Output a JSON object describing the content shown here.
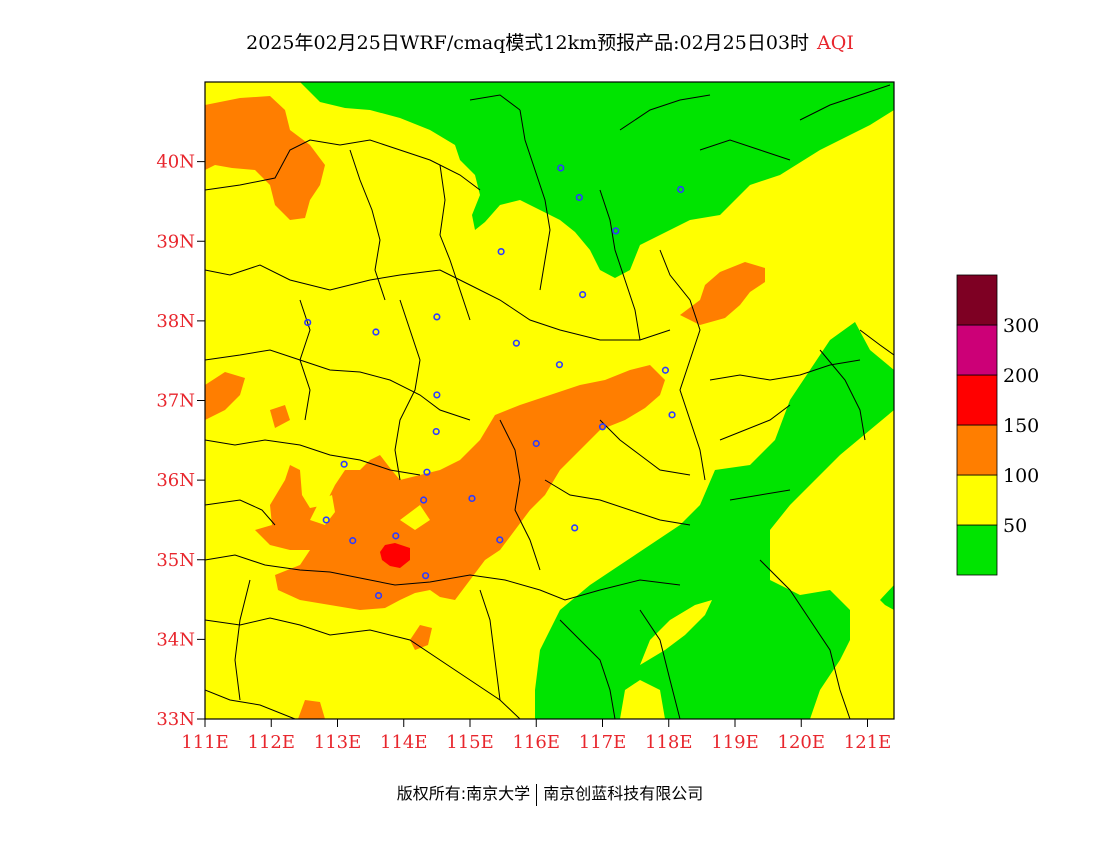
{
  "title": {
    "product": "2025年02月25日WRF/cmaq模式12km预报产品:02月25日03时",
    "variable": "AQI"
  },
  "copyright": {
    "owner": "版权所有:南京大学",
    "company": "南京创蓝科技有限公司"
  },
  "map": {
    "lon_range": [
      111,
      121.4
    ],
    "lat_range": [
      33,
      41
    ],
    "lon_ticks": [
      "111E",
      "112E",
      "113E",
      "114E",
      "115E",
      "116E",
      "117E",
      "118E",
      "119E",
      "120E",
      "121E"
    ],
    "lat_ticks": [
      "33N",
      "34N",
      "35N",
      "36N",
      "37N",
      "38N",
      "39N",
      "40N"
    ],
    "lat_tick_values": [
      33,
      34,
      35,
      36,
      37,
      38,
      39,
      40
    ],
    "lon_tick_values": [
      111,
      112,
      113,
      114,
      115,
      116,
      117,
      118,
      119,
      120,
      121
    ],
    "background_color": "#ffff00",
    "stations": [
      [
        116.37,
        39.92
      ],
      [
        116.65,
        39.55
      ],
      [
        117.2,
        39.13
      ],
      [
        118.18,
        39.65
      ],
      [
        115.47,
        38.87
      ],
      [
        116.7,
        38.33
      ],
      [
        112.55,
        37.98
      ],
      [
        113.58,
        37.86
      ],
      [
        114.5,
        38.05
      ],
      [
        115.7,
        37.72
      ],
      [
        116.35,
        37.45
      ],
      [
        117.95,
        37.38
      ],
      [
        114.5,
        37.07
      ],
      [
        114.49,
        36.61
      ],
      [
        113.1,
        36.2
      ],
      [
        114.35,
        36.1
      ],
      [
        116.0,
        36.46
      ],
      [
        117.0,
        36.67
      ],
      [
        118.05,
        36.82
      ],
      [
        112.83,
        35.5
      ],
      [
        113.23,
        35.24
      ],
      [
        113.88,
        35.3
      ],
      [
        114.3,
        35.75
      ],
      [
        115.03,
        35.77
      ],
      [
        115.45,
        35.25
      ],
      [
        116.58,
        35.4
      ],
      [
        114.33,
        34.8
      ],
      [
        113.62,
        34.55
      ]
    ]
  },
  "legend": {
    "thresholds": [
      "50",
      "100",
      "150",
      "200",
      "300"
    ],
    "colors": [
      "#00e400",
      "#ffff00",
      "#ff7e00",
      "#ff0000",
      "#cc0077",
      "#7e0023"
    ]
  }
}
